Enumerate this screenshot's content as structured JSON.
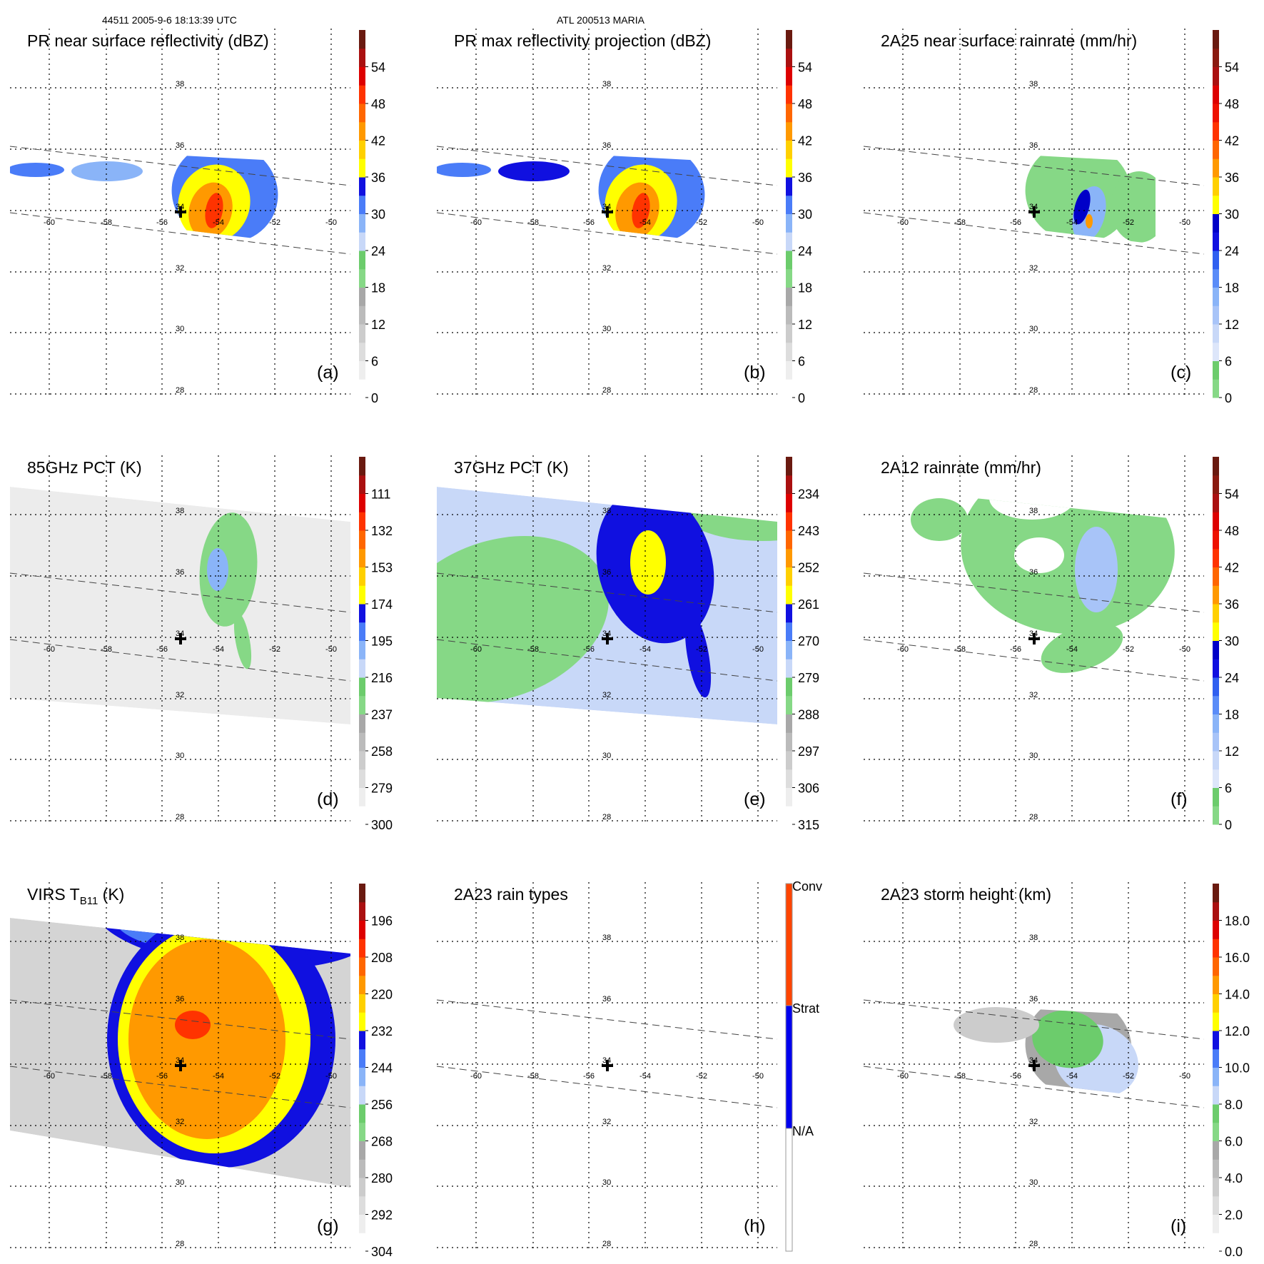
{
  "header": {
    "orbit_time": "44511 2005-9-6 18:13:39 UTC",
    "storm": "ATL 200513 MARIA"
  },
  "lon_labels": [
    "-60",
    "-58",
    "-56",
    "-54",
    "-52",
    "-50"
  ],
  "lat_labels": [
    "38",
    "36",
    "34",
    "32",
    "30",
    "28"
  ],
  "colormaps": {
    "standard": [
      "#ffffff",
      "#eeeeee",
      "#dddddd",
      "#cccccc",
      "#bbbbbb",
      "#a8a8a8",
      "#86d886",
      "#6ccc6c",
      "#c8d8f8",
      "#8ab4f8",
      "#4a7cf8",
      "#1010e0",
      "#ffff00",
      "#ffd000",
      "#ff9900",
      "#ff6600",
      "#ff3300",
      "#dd0000",
      "#aa1010",
      "#6a1a10"
    ],
    "rain": [
      "#86d886",
      "#6ccc6c",
      "#dde6fa",
      "#c8d8f8",
      "#a8c4f8",
      "#8ab4f8",
      "#5a8cf8",
      "#3060f0",
      "#1010e0",
      "#0000c8",
      "#ffff00",
      "#ffd000",
      "#ff9900",
      "#ff6600",
      "#ff3300",
      "#ee1100",
      "#dd0000",
      "#aa1010",
      "#8a1a10",
      "#6a1a10"
    ]
  },
  "panels": [
    {
      "id": "a",
      "title": "PR near surface reflectivity (dBZ)",
      "label": "(a)",
      "cmap": "standard",
      "ticks": [
        "0",
        "6",
        "12",
        "18",
        "24",
        "30",
        "36",
        "42",
        "48",
        "54"
      ]
    },
    {
      "id": "b",
      "title": "PR max reflectivity projection (dBZ)",
      "label": "(b)",
      "cmap": "standard",
      "ticks": [
        "0",
        "6",
        "12",
        "18",
        "24",
        "30",
        "36",
        "42",
        "48",
        "54"
      ]
    },
    {
      "id": "c",
      "title": "2A25 near surface rainrate (mm/hr)",
      "label": "(c)",
      "cmap": "rain",
      "ticks": [
        "0",
        "6",
        "12",
        "18",
        "24",
        "30",
        "36",
        "42",
        "48",
        "54"
      ]
    },
    {
      "id": "d",
      "title": "85GHz PCT (K)",
      "label": "(d)",
      "cmap": "standard",
      "ticks": [
        "300",
        "279",
        "258",
        "237",
        "216",
        "195",
        "174",
        "153",
        "132",
        "111"
      ]
    },
    {
      "id": "e",
      "title": "37GHz PCT (K)",
      "label": "(e)",
      "cmap": "standard",
      "ticks": [
        "315",
        "306",
        "297",
        "288",
        "279",
        "270",
        "261",
        "252",
        "243",
        "234"
      ]
    },
    {
      "id": "f",
      "title": "2A12 rainrate (mm/hr)",
      "label": "(f)",
      "cmap": "rain",
      "ticks": [
        "0",
        "6",
        "12",
        "18",
        "24",
        "30",
        "36",
        "42",
        "48",
        "54"
      ]
    },
    {
      "id": "g",
      "title": "VIRS T",
      "title_sub": "B11",
      "title_unit": " (K)",
      "label": "(g)",
      "cmap": "standard",
      "ticks": [
        "304",
        "292",
        "280",
        "268",
        "256",
        "244",
        "232",
        "220",
        "208",
        "196"
      ]
    },
    {
      "id": "h",
      "title": "2A23 rain types",
      "label": "(h)",
      "cmap": "categorical",
      "categories": [
        "N/A",
        "Strat",
        "Conv"
      ],
      "category_colors": [
        "#ffffff",
        "#0000ee",
        "#ff4400"
      ]
    },
    {
      "id": "i",
      "title": "2A23 storm height (km)",
      "label": "(i)",
      "cmap": "standard",
      "ticks": [
        "0.0",
        "2.0",
        "4.0",
        "6.0",
        "8.0",
        "10.0",
        "12.0",
        "14.0",
        "16.0",
        "18.0"
      ]
    }
  ]
}
